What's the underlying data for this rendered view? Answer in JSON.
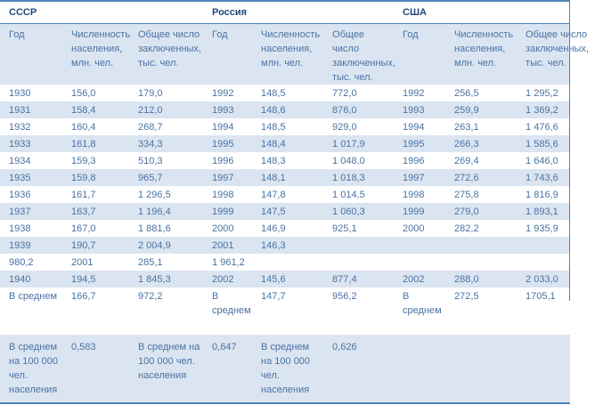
{
  "colors": {
    "title_blue": "#1F497D",
    "text_blue": "#4A72A3",
    "stripe_blue": "#DBE5F1",
    "border_blue": "#4F81BD"
  },
  "table": {
    "sections": [
      {
        "title": "СССР",
        "columns": [
          "Год",
          "Численность населения, млн. чел.",
          "Общее число заключенных, тыс. чел."
        ]
      },
      {
        "title": "Россия",
        "columns": [
          "Год",
          "Численность населения, млн. чел.",
          "Общее число заключенных, тыс. чел."
        ]
      },
      {
        "title": "США",
        "columns": [
          "Год",
          "Численность населения, млн. чел.",
          "Общее число заключенных, тыс. чел."
        ]
      }
    ],
    "rows": [
      [
        "1930",
        "156,0",
        "179,0",
        "1992",
        "148,5",
        "772,0",
        "1992",
        "256,5",
        "1 295,2"
      ],
      [
        "1931",
        "158,4",
        "212,0",
        "1993",
        "148,6",
        "876,0",
        "1993",
        "259,9",
        "1 369,2"
      ],
      [
        "1932",
        "160,4",
        "268,7",
        "1994",
        "148,5",
        "929,0",
        "1994",
        "263,1",
        "1 476,6"
      ],
      [
        "1933",
        "161,8",
        "334,3",
        "1995",
        "148,4",
        "1 017,9",
        "1995",
        "266,3",
        "1 585,6"
      ],
      [
        "1934",
        "159,3",
        "510,3",
        "1996",
        "148,3",
        "1 048,0",
        "1996",
        "269,4",
        "1 646,0"
      ],
      [
        "1935",
        "159,8",
        "965,7",
        "1997",
        "148,1",
        "1 018,3",
        "1997",
        "272,6",
        "1 743,6"
      ],
      [
        "1936",
        "161,7",
        "1 296,5",
        "1998",
        "147,8",
        "1 014,5",
        "1998",
        "275,8",
        "1 816,9"
      ],
      [
        "1937",
        "163,7",
        "1 196,4",
        "1999",
        "147,5",
        "1 060,3",
        "1999",
        "279,0",
        "1 893,1"
      ],
      [
        "1938",
        "167,0",
        "1 881,6",
        "2000",
        "146,9",
        "925,1",
        "2000",
        "282,2",
        "1 935,9"
      ],
      [
        "1939",
        "190,7",
        "2 004,9",
        "2001",
        "146,3",
        "",
        "",
        "",
        ""
      ],
      [
        "980,2",
        "2001",
        "285,1",
        "1 961,2",
        "",
        "",
        "",
        "",
        ""
      ],
      [
        "1940",
        "194,5",
        "1 845,3",
        "2002",
        "145,6",
        "877,4",
        "2002",
        "288,0",
        "2 033,0"
      ],
      [
        "В среднем",
        "166,7",
        "972,2",
        "В среднем",
        "147,7",
        "956,2",
        "В среднем",
        "272,5",
        "1705,1"
      ],
      [
        "В среднем на 100 000 чел. населения",
        "0,583",
        "В среднем на 100 000 чел. населения",
        "0,647",
        "В среднем на 100 000 чел. населения",
        "0,626",
        "",
        "",
        ""
      ]
    ]
  }
}
